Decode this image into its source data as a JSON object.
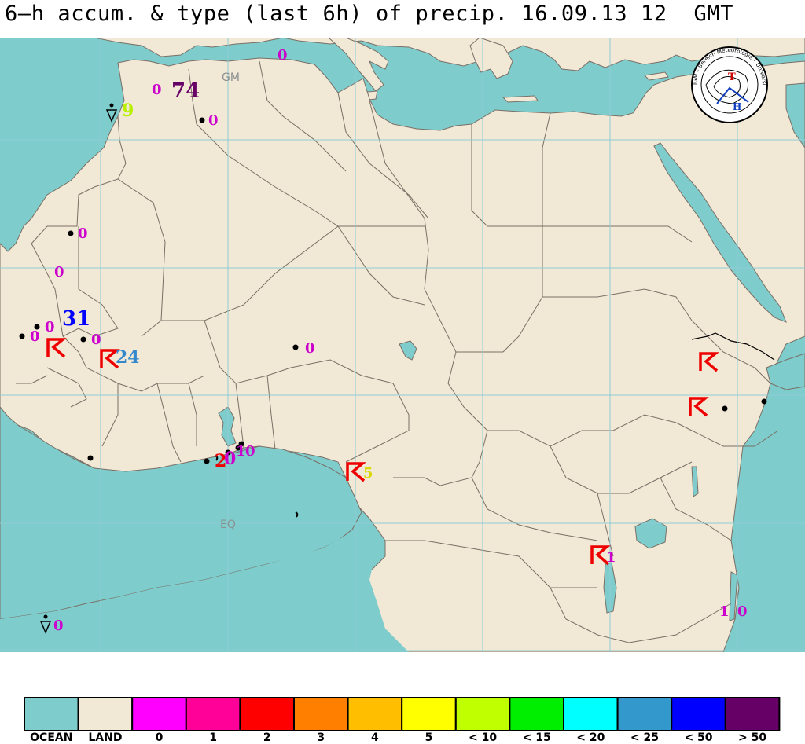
{
  "title": "6–h accum. & type (last 6h) of precip. 16.09.13 12  GMT",
  "map": {
    "labels": {
      "gm": "GM",
      "eq": "EQ"
    },
    "logo": {
      "ring_text": "IGM – Bereich Meteorologie – Universität zu Köln",
      "letters_top": "T",
      "letters_bottom": "H"
    },
    "colors": {
      "ocean": "#7fcccc",
      "land": "#f2e8d6",
      "grid": "#8dcbd6",
      "border": "#7a6f65"
    },
    "stations": [
      {
        "value": "0",
        "color": "#cc00cc"
      },
      {
        "value": "0",
        "color": "#cc00cc"
      },
      {
        "value": "74",
        "color": "#660066"
      },
      {
        "value": "9",
        "color": "#b8f000"
      },
      {
        "value": "0",
        "color": "#cc00cc"
      },
      {
        "value": "0",
        "color": "#cc00cc"
      },
      {
        "value": "0",
        "color": "#cc00cc"
      },
      {
        "value": "31",
        "color": "#0000ff"
      },
      {
        "value": "0",
        "color": "#cc00cc"
      },
      {
        "value": "0",
        "color": "#cc00cc"
      },
      {
        "value": "0",
        "color": "#cc00cc"
      },
      {
        "value": "24",
        "color": "#3388cc"
      },
      {
        "value": "0",
        "color": "#cc00cc"
      },
      {
        "value": "2",
        "color": "#ee0000"
      },
      {
        "value": "0",
        "color": "#cc00cc"
      },
      {
        "value": "1",
        "color": "#cc00cc"
      },
      {
        "value": "0",
        "color": "#cc00cc"
      },
      {
        "value": "5",
        "color": "#d9d900"
      },
      {
        "value": "1",
        "color": "#cc00cc"
      },
      {
        "value": "1",
        "color": "#cc00cc"
      },
      {
        "value": "0",
        "color": "#cc00cc"
      },
      {
        "value": "0",
        "color": "#cc00cc"
      }
    ]
  },
  "legend": {
    "items": [
      {
        "label": "OCEAN",
        "color": "#7fcccc"
      },
      {
        "label": "LAND",
        "color": "#f2e8d6"
      },
      {
        "label": "0",
        "color": "#ff00ff"
      },
      {
        "label": "1",
        "color": "#ff0099"
      },
      {
        "label": "2",
        "color": "#ff0000"
      },
      {
        "label": "3",
        "color": "#ff8000"
      },
      {
        "label": "4",
        "color": "#ffbf00"
      },
      {
        "label": "5",
        "color": "#ffff00"
      },
      {
        "label": "< 10",
        "color": "#bfff00"
      },
      {
        "label": "< 15",
        "color": "#00ee00"
      },
      {
        "label": "< 20",
        "color": "#00ffff"
      },
      {
        "label": "< 25",
        "color": "#3399cc"
      },
      {
        "label": "< 50",
        "color": "#0000ff"
      },
      {
        "label": "> 50",
        "color": "#660066"
      }
    ]
  }
}
